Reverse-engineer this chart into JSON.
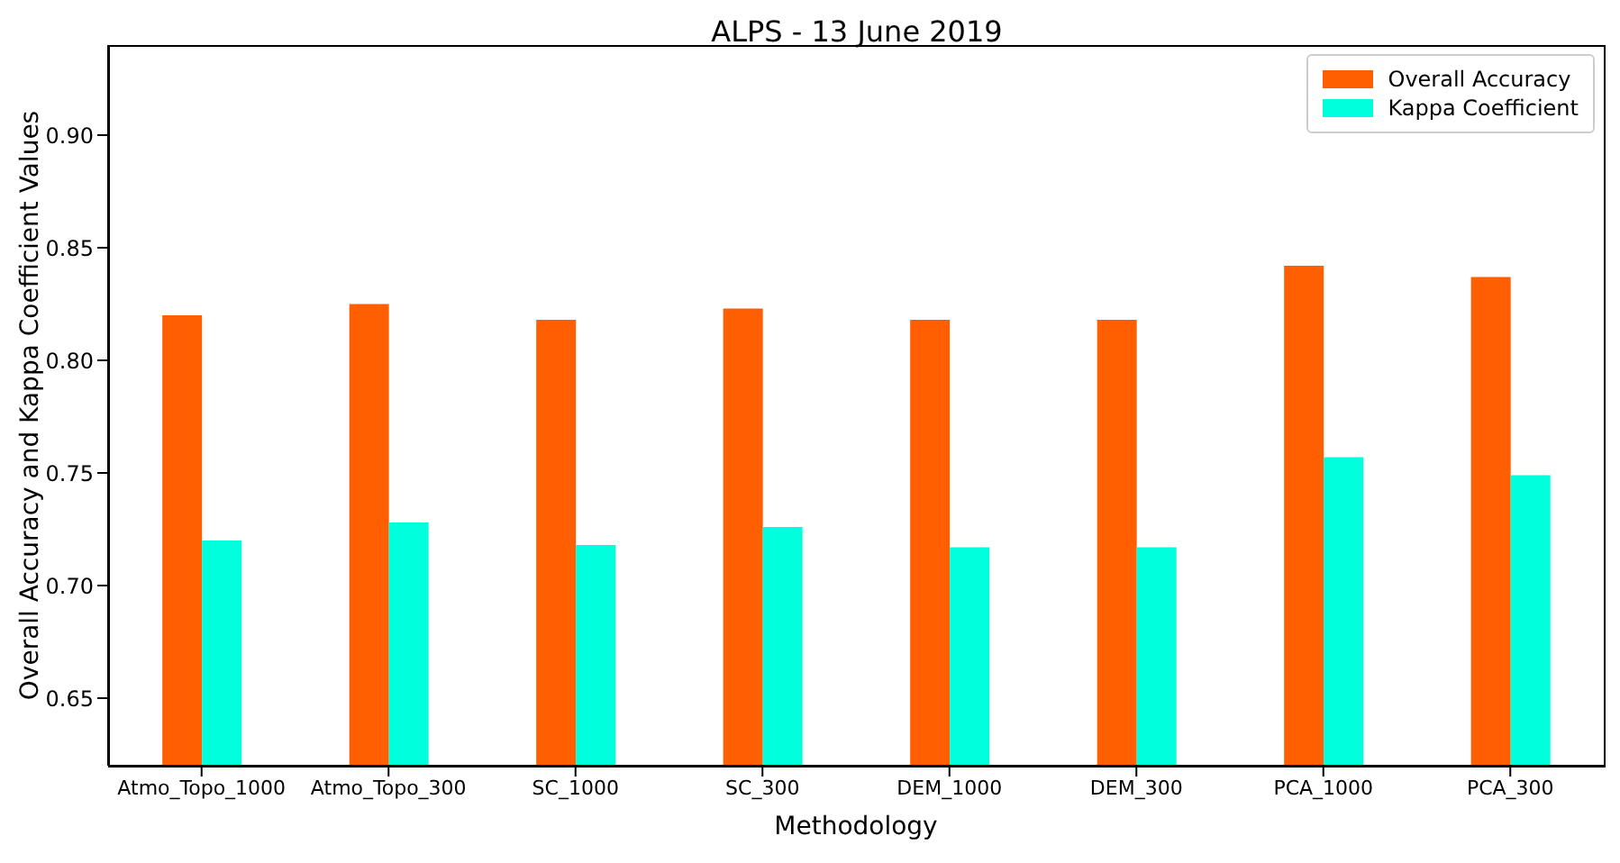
{
  "chart_data": {
    "type": "bar",
    "title": "ALPS - 13 June 2019",
    "xlabel": "Methodology",
    "ylabel": "Overall Accuracy and Kappa Coefficient Values",
    "categories": [
      "Atmo_Topo_1000",
      "Atmo_Topo_300",
      "SC_1000",
      "SC_300",
      "DEM_1000",
      "DEM_300",
      "PCA_1000",
      "PCA_300"
    ],
    "series": [
      {
        "name": "Overall Accuracy",
        "color": "#ff5f00",
        "values": [
          0.82,
          0.825,
          0.818,
          0.823,
          0.818,
          0.818,
          0.842,
          0.837
        ]
      },
      {
        "name": "Kappa Coefficient",
        "color": "#00ffdd",
        "values": [
          0.72,
          0.728,
          0.718,
          0.726,
          0.717,
          0.717,
          0.757,
          0.749
        ]
      }
    ],
    "ylim": [
      0.62,
      0.94
    ],
    "yticks": [
      {
        "value": 0.65,
        "label": "0.65"
      },
      {
        "value": 0.7,
        "label": "0.70"
      },
      {
        "value": 0.75,
        "label": "0.75"
      },
      {
        "value": 0.8,
        "label": "0.80"
      },
      {
        "value": 0.85,
        "label": "0.85"
      },
      {
        "value": 0.9,
        "label": "0.90"
      }
    ],
    "grid": false,
    "legend": "top right"
  }
}
